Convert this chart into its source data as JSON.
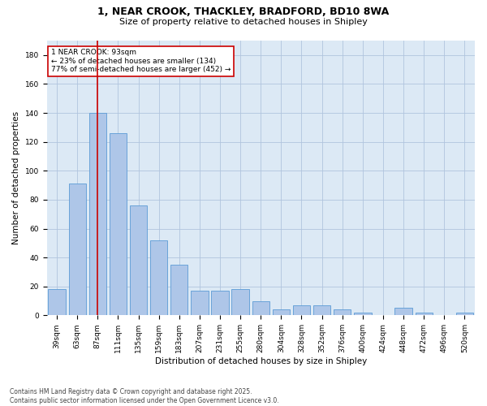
{
  "title_line1": "1, NEAR CROOK, THACKLEY, BRADFORD, BD10 8WA",
  "title_line2": "Size of property relative to detached houses in Shipley",
  "xlabel": "Distribution of detached houses by size in Shipley",
  "ylabel": "Number of detached properties",
  "bar_color": "#aec6e8",
  "bar_edge_color": "#5b9bd5",
  "background_color": "#dce9f5",
  "categories": [
    "39sqm",
    "63sqm",
    "87sqm",
    "111sqm",
    "135sqm",
    "159sqm",
    "183sqm",
    "207sqm",
    "231sqm",
    "255sqm",
    "280sqm",
    "304sqm",
    "328sqm",
    "352sqm",
    "376sqm",
    "400sqm",
    "424sqm",
    "448sqm",
    "472sqm",
    "496sqm",
    "520sqm"
  ],
  "values": [
    18,
    91,
    140,
    126,
    76,
    52,
    35,
    17,
    17,
    18,
    10,
    4,
    7,
    7,
    4,
    2,
    0,
    5,
    2,
    0,
    2
  ],
  "vline_x_index": 2,
  "vline_color": "#cc0000",
  "annotation_text": "1 NEAR CROOK: 93sqm\n← 23% of detached houses are smaller (134)\n77% of semi-detached houses are larger (452) →",
  "annotation_box_color": "#ffffff",
  "annotation_box_edge": "#cc0000",
  "ylim": [
    0,
    190
  ],
  "yticks": [
    0,
    20,
    40,
    60,
    80,
    100,
    120,
    140,
    160,
    180
  ],
  "footer": "Contains HM Land Registry data © Crown copyright and database right 2025.\nContains public sector information licensed under the Open Government Licence v3.0.",
  "grid_color": "#b0c4de",
  "title_fontsize": 9,
  "subtitle_fontsize": 8,
  "tick_fontsize": 6.5,
  "label_fontsize": 7.5,
  "annotation_fontsize": 6.5,
  "footer_fontsize": 5.5
}
